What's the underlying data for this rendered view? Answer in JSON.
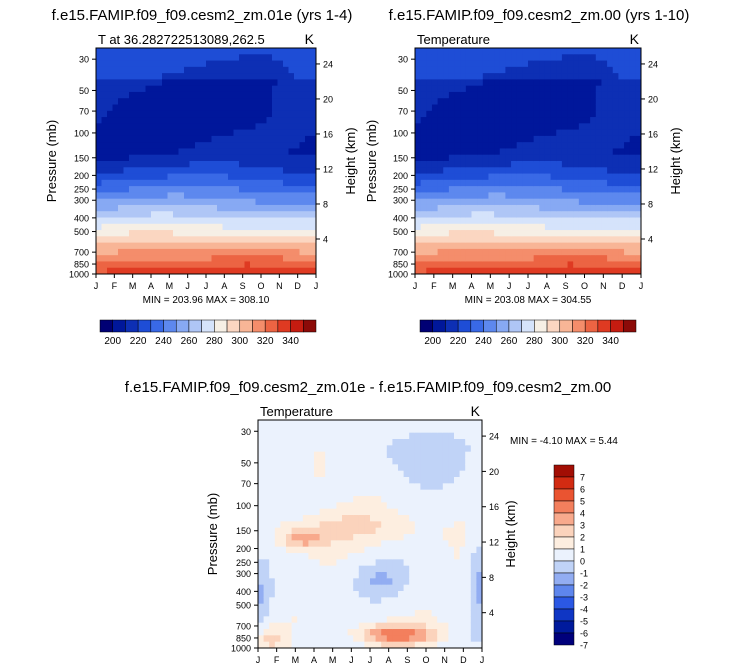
{
  "chart_data": [
    {
      "type": "heatmap",
      "main_title": "f.e15.FAMIP.f09_f09.cesm2_zm.01e (yrs 1-4)",
      "subtitle_left": "T at 36.282722513089,262.5",
      "subtitle_right": "K",
      "xlabel": "",
      "ylabel": "Pressure (mb)",
      "ylabel_right": "Height (km)",
      "x_ticks": [
        "J",
        "F",
        "M",
        "A",
        "M",
        "J",
        "J",
        "A",
        "S",
        "O",
        "N",
        "D",
        "J"
      ],
      "y_ticks": [
        "30",
        "50",
        "70",
        "100",
        "150",
        "200",
        "250",
        "300",
        "400",
        "500",
        "700",
        "850",
        "1000"
      ],
      "y_ticks_right": [
        "24",
        "20",
        "16",
        "12",
        "8",
        "4"
      ],
      "footer": "MIN = 203.96 MAX = 308.10",
      "colorbar_labels": [
        "200",
        "220",
        "240",
        "260",
        "280",
        "300",
        "320",
        "340"
      ]
    },
    {
      "type": "heatmap",
      "main_title": "f.e15.FAMIP.f09_f09.cesm2_zm.00 (yrs 1-10)",
      "subtitle_left": "Temperature",
      "subtitle_right": "K",
      "xlabel": "",
      "ylabel": "Pressure (mb)",
      "ylabel_right": "Height (km)",
      "x_ticks": [
        "J",
        "F",
        "M",
        "A",
        "M",
        "J",
        "J",
        "A",
        "S",
        "O",
        "N",
        "D",
        "J"
      ],
      "y_ticks": [
        "30",
        "50",
        "70",
        "100",
        "150",
        "200",
        "250",
        "300",
        "400",
        "500",
        "700",
        "850",
        "1000"
      ],
      "y_ticks_right": [
        "24",
        "20",
        "16",
        "12",
        "8",
        "4"
      ],
      "footer": "MIN = 203.08 MAX = 304.55",
      "colorbar_labels": [
        "200",
        "220",
        "240",
        "260",
        "280",
        "300",
        "320",
        "340"
      ]
    },
    {
      "type": "heatmap",
      "main_title": "f.e15.FAMIP.f09_f09.cesm2_zm.01e - f.e15.FAMIP.f09_f09.cesm2_zm.00",
      "subtitle_left": "Temperature",
      "subtitle_right": "K",
      "xlabel": "",
      "ylabel": "Pressure (mb)",
      "ylabel_right": "Height (km)",
      "x_ticks": [
        "J",
        "F",
        "M",
        "A",
        "M",
        "J",
        "J",
        "A",
        "S",
        "O",
        "N",
        "D",
        "J"
      ],
      "y_ticks": [
        "30",
        "50",
        "70",
        "100",
        "150",
        "200",
        "250",
        "300",
        "400",
        "500",
        "700",
        "850",
        "1000"
      ],
      "y_ticks_right": [
        "24",
        "20",
        "16",
        "12",
        "8",
        "4"
      ],
      "stats": "MIN =  -4.10 MAX =   5.44",
      "colorbar_labels": [
        "7",
        "6",
        "5",
        "4",
        "3",
        "2",
        "1",
        "0",
        "-1",
        "-2",
        "-3",
        "-4",
        "-5",
        "-6",
        "-7"
      ]
    }
  ],
  "colors": {
    "abs_levels": [
      "#000074",
      "#00179b",
      "#0d2fb4",
      "#1e4dd6",
      "#3969e6",
      "#5d88ee",
      "#87a9f3",
      "#afc6f6",
      "#d5e3fb",
      "#f6efe5",
      "#fbd6c1",
      "#f8b596",
      "#f48d6b",
      "#ec6443",
      "#df3a22",
      "#c51c10",
      "#8c0a08"
    ],
    "diff_levels": [
      "#00007b",
      "#001a9c",
      "#0f36c4",
      "#2b58e4",
      "#5e86ed",
      "#92adf2",
      "#c0d3f7",
      "#ebf2fd",
      "#fdeee0",
      "#fbd3bc",
      "#f8a98c",
      "#f37f5d",
      "#ea5431",
      "#d22b12",
      "#a20e04"
    ]
  }
}
